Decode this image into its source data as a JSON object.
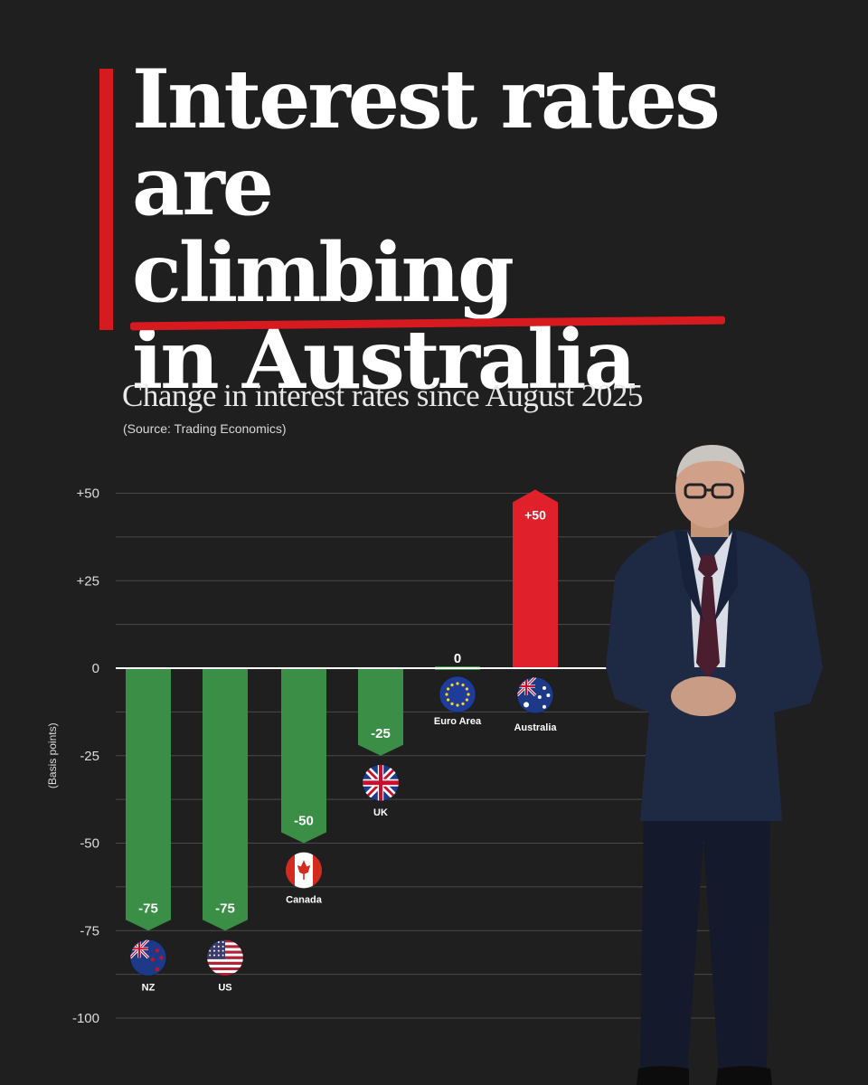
{
  "headline": {
    "line1": "Interest rates",
    "line2_prefix": "are ",
    "line2_emphasis": "climbing",
    "line3": "in Australia"
  },
  "subtitle": "Change in interest rates since August 2025",
  "source": "(Source: Trading Economics)",
  "colors": {
    "background": "#1f1f1f",
    "accent": "#d71920",
    "negative_bar": "#3a8e45",
    "positive_bar": "#e0212b"
  },
  "chart_data": {
    "type": "bar",
    "title": "Change in interest rates since August 2025",
    "ylabel": "(Basis points)",
    "xlabel": "",
    "ylim": [
      -100,
      50
    ],
    "yticks": [
      50,
      25,
      0,
      -25,
      -50,
      -75,
      -100
    ],
    "ytick_labels": [
      "+50",
      "+25",
      "0",
      "-25",
      "-50",
      "-75",
      "-100"
    ],
    "grid": true,
    "categories": [
      "NZ",
      "US",
      "Canada",
      "UK",
      "Euro Area",
      "Australia"
    ],
    "values": [
      -75,
      -75,
      -50,
      -25,
      0,
      50
    ],
    "data_labels": [
      "-75",
      "-75",
      "-50",
      "-25",
      "0",
      "+50"
    ],
    "flag_icons": [
      "new-zealand-flag-icon",
      "united-states-flag-icon",
      "canada-flag-icon",
      "united-kingdom-flag-icon",
      "european-union-flag-icon",
      "australia-flag-icon"
    ]
  }
}
